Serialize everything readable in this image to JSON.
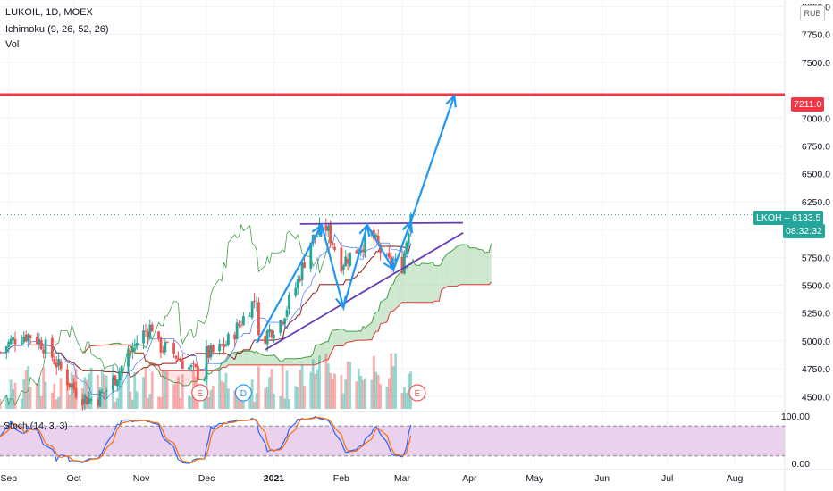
{
  "chart_data": {
    "type": "candlestick",
    "symbol": "LUKOIL",
    "interval": "1D",
    "exchange": "MOEX",
    "title": "LUKOIL, 1D, MOEX",
    "indicators": [
      "Ichimoku (9, 26, 52, 26)",
      "Vol"
    ],
    "currency": "RUB",
    "y_ticks": [
      4500,
      4750,
      5000,
      5250,
      5500,
      5750,
      6000,
      6250,
      6500,
      6750,
      7000,
      7250,
      7500,
      7750,
      8000
    ],
    "y_tick_labels": [
      "4500.0",
      "4750.0",
      "5000.0",
      "5250.0",
      "5500.0",
      "5750.0",
      "",
      "6250.0",
      "6500.0",
      "6750.0",
      "7000.0",
      "",
      "7500.0",
      "7750.0",
      "8000.0"
    ],
    "ylim": [
      4390,
      8060
    ],
    "x_labels": [
      "Sep",
      "Oct",
      "Nov",
      "Dec",
      "2021",
      "Feb",
      "Mar",
      "Apr",
      "May",
      "Jun",
      "Jul",
      "Aug"
    ],
    "x_label_dates": [
      "2020-09-01",
      "2020-10-01",
      "2020-11-01",
      "2020-12-01",
      "2021-01-01",
      "2021-02-01",
      "2021-03-01",
      "2021-04-01",
      "2021-05-01",
      "2021-06-01",
      "2021-07-01",
      "2021-08-01"
    ],
    "xlim": [
      "2020-08-28",
      "2021-08-24"
    ],
    "resistance_level": 7211.0,
    "last_price": 6133.5,
    "last_ticker": "LKOH",
    "countdown": "08:32:32",
    "price_path": [
      {
        "date": "2020-12-24",
        "v": 4980
      },
      {
        "date": "2021-01-04",
        "v": 5180
      },
      {
        "date": "2021-01-11",
        "v": 5480
      },
      {
        "date": "2021-01-18",
        "v": 5900
      },
      {
        "date": "2021-01-25",
        "v": 6020
      },
      {
        "date": "2021-02-01",
        "v": 5700
      },
      {
        "date": "2021-02-08",
        "v": 5820
      },
      {
        "date": "2021-02-15",
        "v": 5950
      },
      {
        "date": "2021-02-22",
        "v": 5700
      },
      {
        "date": "2021-03-01",
        "v": 5680
      },
      {
        "date": "2021-03-05",
        "v": 6133
      }
    ],
    "drawings": {
      "top_resistance": [
        {
          "date": "2021-01-13",
          "v": 6050
        },
        {
          "date": "2021-03-29",
          "v": 6060
        }
      ],
      "rising_support": [
        {
          "date": "2020-12-28",
          "v": 4920
        },
        {
          "date": "2021-03-29",
          "v": 5970
        }
      ],
      "arrow_path": [
        {
          "date": "2020-12-24",
          "v": 4980
        },
        {
          "date": "2021-01-23",
          "v": 6040
        },
        {
          "date": "2021-02-02",
          "v": 5300
        },
        {
          "date": "2021-02-13",
          "v": 6040
        },
        {
          "date": "2021-02-25",
          "v": 5640
        },
        {
          "date": "2021-03-05",
          "v": 6070
        },
        {
          "date": "2021-03-25",
          "v": 7200
        }
      ]
    },
    "event_markers": [
      {
        "label": "E",
        "date": "2020-11-28",
        "color": "#ef5350"
      },
      {
        "label": "D",
        "date": "2020-12-18",
        "color": "#2196f3"
      },
      {
        "label": "E",
        "date": "2021-03-08",
        "color": "#ef5350"
      }
    ],
    "stoch": {
      "label": "Stoch (14, 3, 3)",
      "ylim": [
        0,
        100
      ],
      "y_tick_labels": [
        "100.00",
        "0.00"
      ],
      "bands": [
        80,
        20
      ],
      "k_colors": [
        "#2962ff",
        "#ff6d00"
      ]
    },
    "colors": {
      "resistance": "#f23645",
      "arrows": "#2196f3",
      "trendlines": "#673ab7",
      "up": "#26a69a",
      "down": "#ef5350",
      "cloud_up": "#a5d6a7",
      "cloud_down": "#ffcdd2",
      "stoch_bg": "#e1bee7"
    }
  }
}
